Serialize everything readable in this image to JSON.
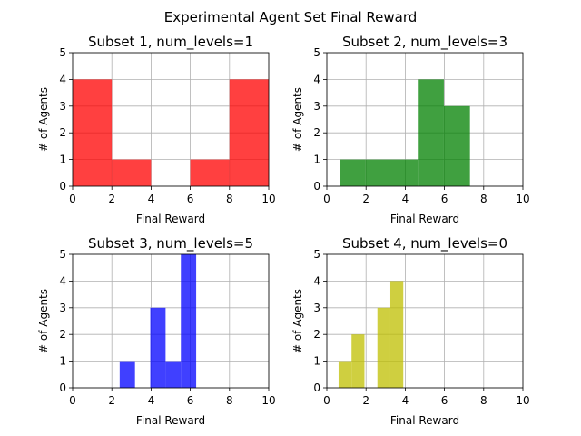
{
  "figure": {
    "title": "Experimental Agent Set Final Reward"
  },
  "chart_data": [
    {
      "type": "bar",
      "title": "Subset 1, num_levels=1",
      "xlabel": "Final Reward",
      "ylabel": "# of Agents",
      "xlim": [
        0,
        10
      ],
      "ylim": [
        0,
        5
      ],
      "xticks": [
        0,
        2,
        4,
        6,
        8,
        10
      ],
      "yticks": [
        0,
        1,
        2,
        3,
        4,
        5
      ],
      "grid": true,
      "color": "#ff0000",
      "alpha": 0.75,
      "bins": [
        {
          "x0": 0.0,
          "x1": 2.0,
          "count": 4
        },
        {
          "x0": 2.0,
          "x1": 4.0,
          "count": 1
        },
        {
          "x0": 4.0,
          "x1": 6.0,
          "count": 0
        },
        {
          "x0": 6.0,
          "x1": 8.0,
          "count": 1
        },
        {
          "x0": 8.0,
          "x1": 10.0,
          "count": 4
        }
      ]
    },
    {
      "type": "bar",
      "title": "Subset 2, num_levels=3",
      "xlabel": "Final Reward",
      "ylabel": "# of Agents",
      "xlim": [
        0,
        10
      ],
      "ylim": [
        0,
        5
      ],
      "xticks": [
        0,
        2,
        4,
        6,
        8,
        10
      ],
      "yticks": [
        0,
        1,
        2,
        3,
        4,
        5
      ],
      "grid": true,
      "color": "#008000",
      "alpha": 0.75,
      "bins": [
        {
          "x0": 0.65,
          "x1": 1.98,
          "count": 1
        },
        {
          "x0": 1.98,
          "x1": 3.31,
          "count": 1
        },
        {
          "x0": 3.31,
          "x1": 4.64,
          "count": 1
        },
        {
          "x0": 4.64,
          "x1": 5.97,
          "count": 4
        },
        {
          "x0": 5.97,
          "x1": 7.3,
          "count": 3
        }
      ]
    },
    {
      "type": "bar",
      "title": "Subset 3, num_levels=5",
      "xlabel": "Final Reward",
      "ylabel": "# of Agents",
      "xlim": [
        0,
        10
      ],
      "ylim": [
        0,
        5
      ],
      "xticks": [
        0,
        2,
        4,
        6,
        8,
        10
      ],
      "yticks": [
        0,
        1,
        2,
        3,
        4,
        5
      ],
      "grid": true,
      "color": "#0000ff",
      "alpha": 0.75,
      "bins": [
        {
          "x0": 2.4,
          "x1": 3.18,
          "count": 1
        },
        {
          "x0": 3.18,
          "x1": 3.96,
          "count": 0
        },
        {
          "x0": 3.96,
          "x1": 4.74,
          "count": 3
        },
        {
          "x0": 4.74,
          "x1": 5.52,
          "count": 1
        },
        {
          "x0": 5.52,
          "x1": 6.3,
          "count": 5
        }
      ]
    },
    {
      "type": "bar",
      "title": "Subset 4, num_levels=0",
      "xlabel": "Final Reward",
      "ylabel": "# of Agents",
      "xlim": [
        0,
        10
      ],
      "ylim": [
        0,
        5
      ],
      "xticks": [
        0,
        2,
        4,
        6,
        8,
        10
      ],
      "yticks": [
        0,
        1,
        2,
        3,
        4,
        5
      ],
      "grid": true,
      "color": "#bfbf00",
      "alpha": 0.75,
      "bins": [
        {
          "x0": 0.6,
          "x1": 1.26,
          "count": 1
        },
        {
          "x0": 1.26,
          "x1": 1.92,
          "count": 2
        },
        {
          "x0": 1.92,
          "x1": 2.58,
          "count": 0
        },
        {
          "x0": 2.58,
          "x1": 3.24,
          "count": 3
        },
        {
          "x0": 3.24,
          "x1": 3.9,
          "count": 4
        }
      ]
    }
  ]
}
